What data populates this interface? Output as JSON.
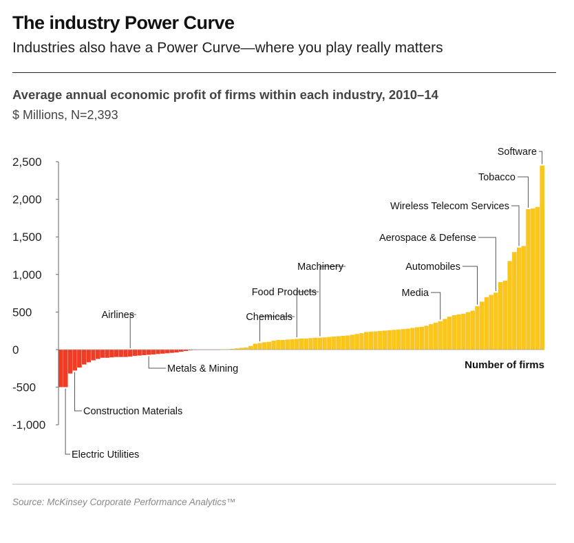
{
  "header": {
    "title": "The industry Power Curve",
    "subtitle": "Industries also have a Power Curve—where you play really matters"
  },
  "source": "Source: McKinsey Corporate Performance Analytics™",
  "chart_data": {
    "type": "bar",
    "title": "Average annual economic profit of firms within each industry, 2010–14",
    "subtitle": "$ Millions, N=2,393",
    "xlabel": "Number of firms",
    "ylabel": "",
    "ylim": [
      -1000,
      2500
    ],
    "yticks": [
      2500,
      2000,
      1500,
      1000,
      500,
      0,
      -500,
      -1000
    ],
    "ytick_labels": [
      "2,500",
      "2,000",
      "1,500",
      "1,000",
      "500",
      "0",
      "-500",
      "-1,000"
    ],
    "grid": false,
    "colors": {
      "negative": "#f03c24",
      "positive": "#fac51c"
    },
    "values": [
      -500,
      -500,
      -320,
      -280,
      -240,
      -200,
      -170,
      -145,
      -125,
      -110,
      -110,
      -105,
      -100,
      -100,
      -100,
      -95,
      -85,
      -80,
      -75,
      -70,
      -65,
      -60,
      -55,
      -50,
      -45,
      -40,
      -30,
      -20,
      -10,
      -8,
      -6,
      -5,
      -5,
      -5,
      -5,
      5,
      8,
      12,
      18,
      25,
      30,
      50,
      80,
      90,
      100,
      105,
      120,
      130,
      130,
      135,
      140,
      145,
      150,
      150,
      155,
      160,
      160,
      165,
      170,
      175,
      180,
      185,
      190,
      200,
      210,
      220,
      235,
      240,
      245,
      250,
      255,
      260,
      265,
      270,
      275,
      280,
      290,
      300,
      305,
      320,
      340,
      360,
      380,
      410,
      440,
      460,
      470,
      480,
      500,
      520,
      580,
      640,
      700,
      730,
      760,
      900,
      920,
      1180,
      1300,
      1360,
      1380,
      1870,
      1880,
      1900,
      2450
    ],
    "annotations": [
      {
        "label": "Electric Utilities",
        "index": 1
      },
      {
        "label": "Construction Materials",
        "index": 3
      },
      {
        "label": "Airlines",
        "index": 15
      },
      {
        "label": "Metals & Mining",
        "index": 19
      },
      {
        "label": "Chemicals",
        "index": 43
      },
      {
        "label": "Food Products",
        "index": 51
      },
      {
        "label": "Machinery",
        "index": 56
      },
      {
        "label": "Media",
        "index": 82
      },
      {
        "label": "Automobiles",
        "index": 90
      },
      {
        "label": "Aerospace & Defense",
        "index": 94
      },
      {
        "label": "Wireless Telecom Services",
        "index": 99
      },
      {
        "label": "Tobacco",
        "index": 101
      },
      {
        "label": "Software",
        "index": 104
      }
    ]
  }
}
